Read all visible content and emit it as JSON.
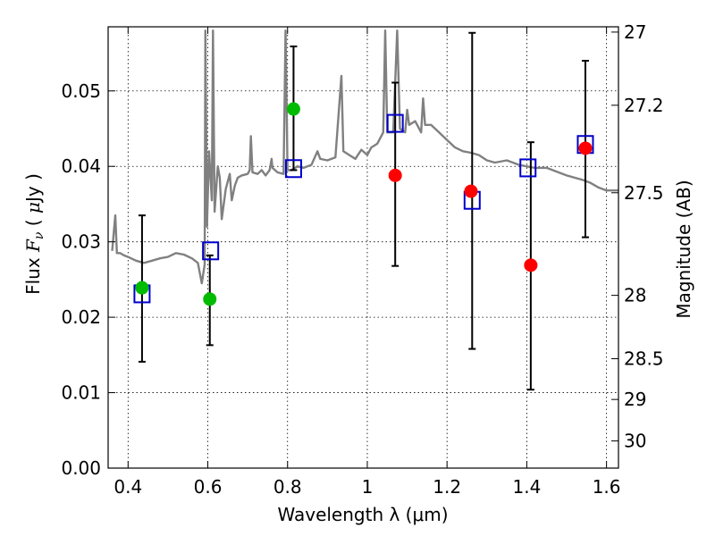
{
  "chart_data": {
    "type": "scatter",
    "xlabel": "Wavelength  λ (μm)",
    "ylabel": "Flux  F_ν  ( μJy )",
    "ylabel_right": "Magnitude (AB)",
    "xlim": [
      0.35,
      1.63
    ],
    "ylim": [
      0.0,
      0.0585
    ],
    "grid": true,
    "x_ticks": [
      0.4,
      0.6,
      0.8,
      1.0,
      1.2,
      1.4,
      1.6
    ],
    "x_tick_labels": [
      "0.4",
      "0.6",
      "0.8",
      "1",
      "1.2",
      "1.4",
      "1.6"
    ],
    "y_ticks": [
      0.0,
      0.01,
      0.02,
      0.03,
      0.04,
      0.05
    ],
    "y_tick_labels": [
      "0.00",
      "0.01",
      "0.02",
      "0.03",
      "0.04",
      "0.05"
    ],
    "right_ticks": [
      {
        "label": "27",
        "flux": 0.0578
      },
      {
        "label": "27.2",
        "flux": 0.0481
      },
      {
        "label": "27.5",
        "flux": 0.0365
      },
      {
        "label": "28",
        "flux": 0.0229
      },
      {
        "label": "28.5",
        "flux": 0.0145
      },
      {
        "label": "29",
        "flux": 0.0091
      },
      {
        "label": "30",
        "flux": 0.0036
      }
    ],
    "series": [
      {
        "name": "model spectrum",
        "kind": "line",
        "color": "#808080",
        "points": [
          [
            0.36,
            0.0288
          ],
          [
            0.368,
            0.0335
          ],
          [
            0.372,
            0.0285
          ],
          [
            0.38,
            0.0285
          ],
          [
            0.39,
            0.0282
          ],
          [
            0.4,
            0.028
          ],
          [
            0.42,
            0.0275
          ],
          [
            0.44,
            0.0272
          ],
          [
            0.46,
            0.0275
          ],
          [
            0.48,
            0.0278
          ],
          [
            0.5,
            0.028
          ],
          [
            0.52,
            0.0285
          ],
          [
            0.54,
            0.0283
          ],
          [
            0.56,
            0.0278
          ],
          [
            0.575,
            0.0272
          ],
          [
            0.585,
            0.0245
          ],
          [
            0.592,
            0.027
          ],
          [
            0.594,
            0.058
          ],
          [
            0.598,
            0.032
          ],
          [
            0.603,
            0.042
          ],
          [
            0.61,
            0.0355
          ],
          [
            0.613,
            0.058
          ],
          [
            0.617,
            0.034
          ],
          [
            0.625,
            0.04
          ],
          [
            0.63,
            0.0385
          ],
          [
            0.635,
            0.033
          ],
          [
            0.645,
            0.037
          ],
          [
            0.655,
            0.039
          ],
          [
            0.66,
            0.0355
          ],
          [
            0.668,
            0.0375
          ],
          [
            0.675,
            0.0385
          ],
          [
            0.685,
            0.0388
          ],
          [
            0.7,
            0.039
          ],
          [
            0.705,
            0.0395
          ],
          [
            0.708,
            0.044
          ],
          [
            0.712,
            0.0392
          ],
          [
            0.725,
            0.039
          ],
          [
            0.735,
            0.0395
          ],
          [
            0.745,
            0.0388
          ],
          [
            0.755,
            0.0395
          ],
          [
            0.76,
            0.041
          ],
          [
            0.762,
            0.0398
          ],
          [
            0.775,
            0.0392
          ],
          [
            0.79,
            0.039
          ],
          [
            0.795,
            0.058
          ],
          [
            0.8,
            0.0395
          ],
          [
            0.81,
            0.0395
          ],
          [
            0.825,
            0.04
          ],
          [
            0.84,
            0.0398
          ],
          [
            0.86,
            0.0402
          ],
          [
            0.875,
            0.042
          ],
          [
            0.882,
            0.041
          ],
          [
            0.9,
            0.0408
          ],
          [
            0.92,
            0.0412
          ],
          [
            0.935,
            0.052
          ],
          [
            0.94,
            0.042
          ],
          [
            0.955,
            0.0415
          ],
          [
            0.97,
            0.041
          ],
          [
            0.985,
            0.0422
          ],
          [
            1.0,
            0.0415
          ],
          [
            1.01,
            0.0425
          ],
          [
            1.025,
            0.043
          ],
          [
            1.04,
            0.0445
          ],
          [
            1.045,
            0.058
          ],
          [
            1.05,
            0.0445
          ],
          [
            1.065,
            0.0445
          ],
          [
            1.075,
            0.058
          ],
          [
            1.082,
            0.045
          ],
          [
            1.095,
            0.0445
          ],
          [
            1.1,
            0.0475
          ],
          [
            1.105,
            0.0455
          ],
          [
            1.12,
            0.046
          ],
          [
            1.135,
            0.0445
          ],
          [
            1.14,
            0.049
          ],
          [
            1.145,
            0.0455
          ],
          [
            1.16,
            0.0455
          ],
          [
            1.18,
            0.0445
          ],
          [
            1.2,
            0.0435
          ],
          [
            1.22,
            0.0425
          ],
          [
            1.24,
            0.042
          ],
          [
            1.26,
            0.0418
          ],
          [
            1.28,
            0.0415
          ],
          [
            1.3,
            0.0408
          ],
          [
            1.32,
            0.0405
          ],
          [
            1.35,
            0.0408
          ],
          [
            1.38,
            0.0402
          ],
          [
            1.42,
            0.0398
          ],
          [
            1.45,
            0.0398
          ],
          [
            1.48,
            0.0392
          ],
          [
            1.5,
            0.0388
          ],
          [
            1.52,
            0.0385
          ],
          [
            1.54,
            0.0382
          ],
          [
            1.56,
            0.0378
          ],
          [
            1.58,
            0.0372
          ],
          [
            1.6,
            0.0368
          ],
          [
            1.63,
            0.0368
          ]
        ]
      },
      {
        "name": "model band flux",
        "kind": "open-square",
        "color": "#0000cc",
        "points": [
          [
            0.435,
            0.0231
          ],
          [
            0.607,
            0.0288
          ],
          [
            0.815,
            0.0397
          ],
          [
            1.07,
            0.0457
          ],
          [
            1.263,
            0.0355
          ],
          [
            1.403,
            0.0398
          ],
          [
            1.547,
            0.0429
          ]
        ]
      },
      {
        "name": "green detections",
        "kind": "filled-circle",
        "color": "#00bb00",
        "points": [
          [
            0.435,
            0.0239
          ],
          [
            0.605,
            0.0224
          ],
          [
            0.815,
            0.0476
          ]
        ]
      },
      {
        "name": "red detections",
        "kind": "filled-circle",
        "color": "#ff0000",
        "points": [
          [
            1.07,
            0.0388
          ],
          [
            1.26,
            0.0367
          ],
          [
            1.41,
            0.0269
          ],
          [
            1.547,
            0.0424
          ]
        ]
      },
      {
        "name": "error bars",
        "kind": "errorbar",
        "color": "#000000",
        "points": [
          {
            "x": 0.435,
            "low": 0.0141,
            "high": 0.0335
          },
          {
            "x": 0.605,
            "low": 0.0163,
            "high": 0.0282
          },
          {
            "x": 0.815,
            "low": 0.0395,
            "high": 0.0559
          },
          {
            "x": 1.07,
            "low": 0.0268,
            "high": 0.0511
          },
          {
            "x": 1.263,
            "low": 0.0158,
            "high": 0.0577
          },
          {
            "x": 1.41,
            "low": 0.0104,
            "high": 0.0432
          },
          {
            "x": 1.547,
            "low": 0.0306,
            "high": 0.054
          }
        ]
      }
    ]
  }
}
